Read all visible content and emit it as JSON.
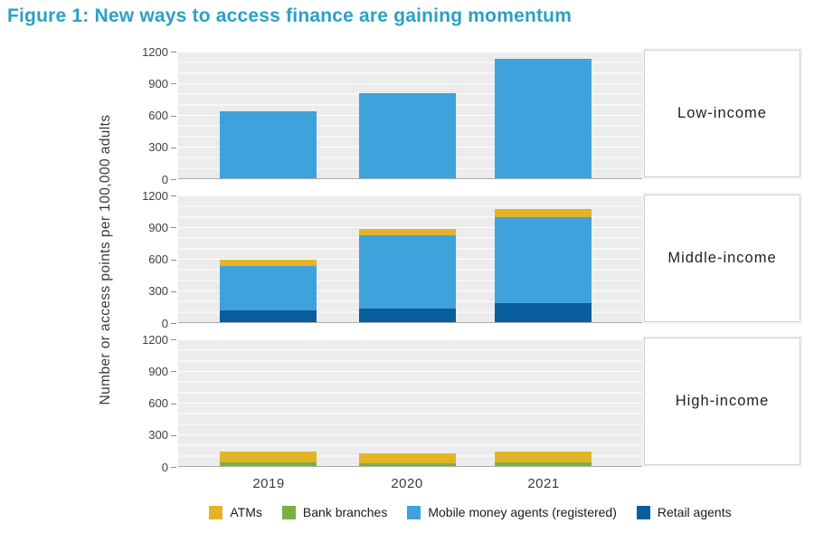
{
  "title": "Figure 1: New ways to access finance are gaining momentum",
  "colors": {
    "title": "#2BA0C7",
    "panel_background": "#ECECEC",
    "gridline": "#FFFFFF",
    "axis_line": "#ABABAB",
    "atms": "#E3B427",
    "bank_branches": "#76B143",
    "mobile_money_agents": "#3FA2DC",
    "retail_agents": "#0A5D9C"
  },
  "chart_data": {
    "type": "bar",
    "stacked": true,
    "title": "Figure 1: New ways to access finance are gaining momentum",
    "categories": [
      "2019",
      "2020",
      "2021"
    ],
    "ylabel": "Number or access points per 100,000 adults",
    "ylim": [
      0,
      1200
    ],
    "yticks": [
      0,
      300,
      600,
      900,
      1200
    ],
    "grid_interval": 100,
    "legend_position": "bottom",
    "legend": [
      {
        "name": "ATMs",
        "color": "#E3B427"
      },
      {
        "name": "Bank branches",
        "color": "#76B143"
      },
      {
        "name": "Mobile money agents (registered)",
        "color": "#3FA2DC"
      },
      {
        "name": "Retail agents",
        "color": "#0A5D9C"
      }
    ],
    "stack_order_bottom_to_top": [
      "Retail agents",
      "Bank branches",
      "Mobile money agents (registered)",
      "ATMs"
    ],
    "panels": [
      {
        "label": "Low-income",
        "series": [
          {
            "name": "ATMs",
            "values": [
              0,
              0,
              0
            ]
          },
          {
            "name": "Bank branches",
            "values": [
              0,
              0,
              0
            ]
          },
          {
            "name": "Mobile money agents (registered)",
            "values": [
              630,
              800,
              1120
            ]
          },
          {
            "name": "Retail agents",
            "values": [
              0,
              0,
              0
            ]
          }
        ]
      },
      {
        "label": "Middle-income",
        "series": [
          {
            "name": "ATMs",
            "values": [
              60,
              65,
              70
            ]
          },
          {
            "name": "Bank branches",
            "values": [
              0,
              0,
              0
            ]
          },
          {
            "name": "Mobile money agents (registered)",
            "values": [
              415,
              690,
              815
            ]
          },
          {
            "name": "Retail agents",
            "values": [
              115,
              125,
              175
            ]
          }
        ]
      },
      {
        "label": "High-income",
        "series": [
          {
            "name": "ATMs",
            "values": [
              110,
              90,
              100
            ]
          },
          {
            "name": "Bank branches",
            "values": [
              30,
              28,
              35
            ]
          },
          {
            "name": "Mobile money agents (registered)",
            "values": [
              0,
              0,
              0
            ]
          },
          {
            "name": "Retail agents",
            "values": [
              0,
              0,
              0
            ]
          }
        ]
      }
    ]
  }
}
